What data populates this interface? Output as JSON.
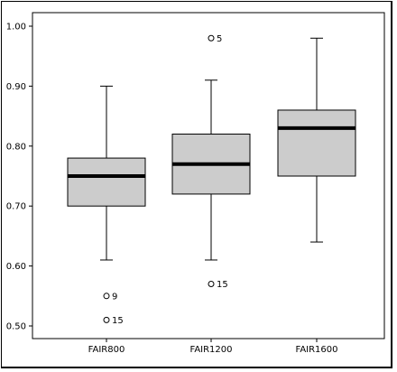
{
  "chart_data": {
    "type": "boxplot",
    "categories": [
      "FAIR800",
      "FAIR1200",
      "FAIR1600"
    ],
    "boxes": [
      {
        "category": "FAIR800",
        "whisker_low": 0.61,
        "q1": 0.7,
        "median": 0.75,
        "q3": 0.78,
        "whisker_high": 0.9,
        "outliers": [
          {
            "value": 0.55,
            "label": "9"
          },
          {
            "value": 0.51,
            "label": "15"
          }
        ]
      },
      {
        "category": "FAIR1200",
        "whisker_low": 0.61,
        "q1": 0.72,
        "median": 0.77,
        "q3": 0.82,
        "whisker_high": 0.91,
        "outliers": [
          {
            "value": 0.98,
            "label": "5"
          },
          {
            "value": 0.57,
            "label": "15"
          }
        ]
      },
      {
        "category": "FAIR1600",
        "whisker_low": 0.64,
        "q1": 0.75,
        "median": 0.83,
        "q3": 0.86,
        "whisker_high": 0.98,
        "outliers": []
      }
    ],
    "yticks": [
      "0.50",
      "0.60",
      "0.70",
      "0.80",
      "0.90",
      "1.00"
    ],
    "ylim": [
      0.5,
      1.0
    ],
    "title": "",
    "xlabel": "",
    "ylabel": "",
    "box_color": "#cccccc",
    "grid": false
  }
}
